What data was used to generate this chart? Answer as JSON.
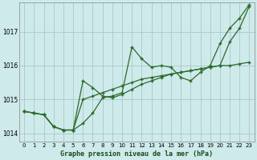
{
  "xlabel": "Graphe pression niveau de la mer (hPa)",
  "x": [
    0,
    1,
    2,
    3,
    4,
    5,
    6,
    7,
    8,
    9,
    10,
    11,
    12,
    13,
    14,
    15,
    16,
    17,
    18,
    19,
    20,
    21,
    22,
    23
  ],
  "line1": [
    1014.65,
    1014.6,
    1014.55,
    1014.2,
    1014.1,
    1014.1,
    1015.55,
    1015.35,
    1015.1,
    1015.05,
    1015.15,
    1015.3,
    1015.45,
    1015.55,
    1015.65,
    1015.75,
    1015.8,
    1015.85,
    1015.9,
    1015.95,
    1016.0,
    1016.0,
    1016.05,
    1016.1
  ],
  "line2": [
    1014.65,
    1014.6,
    1014.55,
    1014.2,
    1014.1,
    1014.1,
    1014.3,
    1014.6,
    1015.05,
    1015.1,
    1015.2,
    1016.55,
    1016.2,
    1015.95,
    1016.0,
    1015.95,
    1015.65,
    1015.55,
    1015.8,
    1016.0,
    1016.65,
    1017.1,
    1017.4,
    1017.8
  ],
  "line3": [
    1014.65,
    1014.6,
    1014.55,
    1014.2,
    1014.1,
    1014.1,
    1015.0,
    1015.1,
    1015.2,
    1015.3,
    1015.4,
    1015.5,
    1015.6,
    1015.65,
    1015.7,
    1015.75,
    1015.8,
    1015.85,
    1015.9,
    1015.95,
    1016.0,
    1016.7,
    1017.1,
    1017.75
  ],
  "line_color": "#2d6a2d",
  "bg_color": "#ceeaea",
  "grid_color": "#a8c8c8",
  "ylim": [
    1013.75,
    1017.85
  ],
  "yticks": [
    1014,
    1015,
    1016,
    1017
  ],
  "xticks": [
    0,
    1,
    2,
    3,
    4,
    5,
    6,
    7,
    8,
    9,
    10,
    11,
    12,
    13,
    14,
    15,
    16,
    17,
    18,
    19,
    20,
    21,
    22,
    23
  ]
}
